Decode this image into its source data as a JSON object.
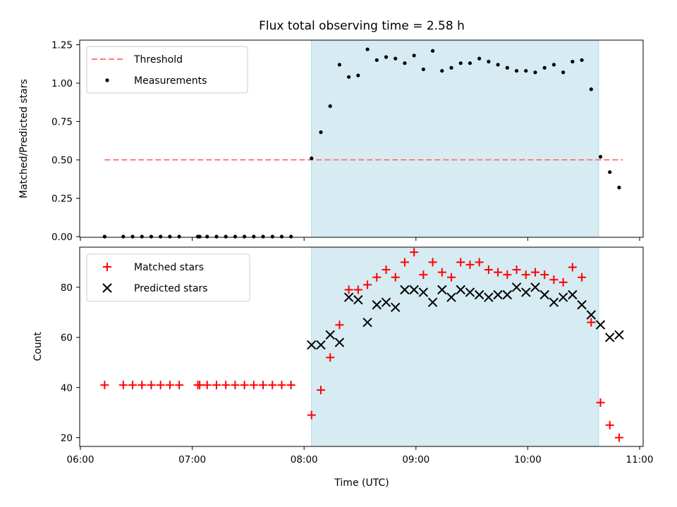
{
  "title": "Flux total observing time = 2.58 h",
  "xlabel": "Time (UTC)",
  "colors": {
    "highlight": "#add8e6",
    "threshold": "#ff7f7f",
    "measurements": "#000000",
    "matched": "#ff0000",
    "predicted": "#000000"
  },
  "chart_data": [
    {
      "type": "line+scatter",
      "ylabel": "Matched/Predicted stars",
      "xlim": [
        "06:00",
        "11:00"
      ],
      "ylim": [
        0,
        1.28
      ],
      "x_ticks": [
        "06:00",
        "07:00",
        "08:00",
        "09:00",
        "10:00",
        "11:00"
      ],
      "y_ticks": [
        "0.00",
        "0.25",
        "0.50",
        "0.75",
        "1.00",
        "1.25"
      ],
      "legend_position": "top-left",
      "highlight_span": [
        "08:04",
        "10:38"
      ],
      "threshold": {
        "name": "Threshold",
        "value": 0.5,
        "x_range": [
          "06:13",
          "10:51"
        ]
      },
      "series": [
        {
          "name": "Measurements",
          "marker": "dot",
          "points": [
            [
              "06:13",
              0
            ],
            [
              "06:23",
              0
            ],
            [
              "06:28",
              0
            ],
            [
              "06:33",
              0
            ],
            [
              "06:38",
              0
            ],
            [
              "06:43",
              0
            ],
            [
              "06:48",
              0
            ],
            [
              "06:53",
              0
            ],
            [
              "07:03",
              0
            ],
            [
              "07:04",
              0
            ],
            [
              "07:08",
              0
            ],
            [
              "07:13",
              0
            ],
            [
              "07:18",
              0
            ],
            [
              "07:23",
              0
            ],
            [
              "07:28",
              0
            ],
            [
              "07:33",
              0
            ],
            [
              "07:38",
              0
            ],
            [
              "07:43",
              0
            ],
            [
              "07:48",
              0
            ],
            [
              "07:53",
              0
            ],
            [
              "08:04",
              0.51
            ],
            [
              "08:09",
              0.68
            ],
            [
              "08:14",
              0.85
            ],
            [
              "08:19",
              1.12
            ],
            [
              "08:24",
              1.04
            ],
            [
              "08:29",
              1.05
            ],
            [
              "08:34",
              1.22
            ],
            [
              "08:39",
              1.15
            ],
            [
              "08:44",
              1.17
            ],
            [
              "08:49",
              1.16
            ],
            [
              "08:54",
              1.13
            ],
            [
              "08:59",
              1.18
            ],
            [
              "09:04",
              1.09
            ],
            [
              "09:09",
              1.21
            ],
            [
              "09:14",
              1.08
            ],
            [
              "09:19",
              1.1
            ],
            [
              "09:24",
              1.13
            ],
            [
              "09:29",
              1.13
            ],
            [
              "09:34",
              1.16
            ],
            [
              "09:39",
              1.14
            ],
            [
              "09:44",
              1.12
            ],
            [
              "09:49",
              1.1
            ],
            [
              "09:54",
              1.08
            ],
            [
              "09:59",
              1.08
            ],
            [
              "10:04",
              1.07
            ],
            [
              "10:09",
              1.1
            ],
            [
              "10:14",
              1.12
            ],
            [
              "10:19",
              1.07
            ],
            [
              "10:24",
              1.14
            ],
            [
              "10:29",
              1.15
            ],
            [
              "10:34",
              0.96
            ],
            [
              "10:39",
              0.52
            ],
            [
              "10:44",
              0.42
            ],
            [
              "10:49",
              0.32
            ]
          ]
        }
      ]
    },
    {
      "type": "scatter",
      "ylabel": "Count",
      "xlim": [
        "06:00",
        "11:00"
      ],
      "ylim": [
        16.5,
        96
      ],
      "x_ticks": [
        "06:00",
        "07:00",
        "08:00",
        "09:00",
        "10:00",
        "11:00"
      ],
      "y_ticks": [
        "20",
        "40",
        "60",
        "80"
      ],
      "legend_position": "top-left",
      "highlight_span": [
        "08:04",
        "10:38"
      ],
      "series": [
        {
          "name": "Matched stars",
          "marker": "plus",
          "points": [
            [
              "06:13",
              41
            ],
            [
              "06:23",
              41
            ],
            [
              "06:28",
              41
            ],
            [
              "06:33",
              41
            ],
            [
              "06:38",
              41
            ],
            [
              "06:43",
              41
            ],
            [
              "06:48",
              41
            ],
            [
              "06:53",
              41
            ],
            [
              "07:03",
              41
            ],
            [
              "07:04",
              41
            ],
            [
              "07:08",
              41
            ],
            [
              "07:13",
              41
            ],
            [
              "07:18",
              41
            ],
            [
              "07:23",
              41
            ],
            [
              "07:28",
              41
            ],
            [
              "07:33",
              41
            ],
            [
              "07:38",
              41
            ],
            [
              "07:43",
              41
            ],
            [
              "07:48",
              41
            ],
            [
              "07:53",
              41
            ],
            [
              "08:04",
              29
            ],
            [
              "08:09",
              39
            ],
            [
              "08:14",
              52
            ],
            [
              "08:19",
              65
            ],
            [
              "08:24",
              79
            ],
            [
              "08:29",
              79
            ],
            [
              "08:34",
              81
            ],
            [
              "08:39",
              84
            ],
            [
              "08:44",
              87
            ],
            [
              "08:49",
              84
            ],
            [
              "08:54",
              90
            ],
            [
              "08:59",
              94
            ],
            [
              "09:04",
              85
            ],
            [
              "09:09",
              90
            ],
            [
              "09:14",
              86
            ],
            [
              "09:19",
              84
            ],
            [
              "09:24",
              90
            ],
            [
              "09:29",
              89
            ],
            [
              "09:34",
              90
            ],
            [
              "09:39",
              87
            ],
            [
              "09:44",
              86
            ],
            [
              "09:49",
              85
            ],
            [
              "09:54",
              87
            ],
            [
              "09:59",
              85
            ],
            [
              "10:04",
              86
            ],
            [
              "10:09",
              85
            ],
            [
              "10:14",
              83
            ],
            [
              "10:19",
              82
            ],
            [
              "10:24",
              88
            ],
            [
              "10:29",
              84
            ],
            [
              "10:34",
              66
            ],
            [
              "10:39",
              34
            ],
            [
              "10:44",
              25
            ],
            [
              "10:49",
              20
            ]
          ]
        },
        {
          "name": "Predicted stars",
          "marker": "x",
          "points": [
            [
              "08:04",
              57
            ],
            [
              "08:09",
              57
            ],
            [
              "08:14",
              61
            ],
            [
              "08:19",
              58
            ],
            [
              "08:24",
              76
            ],
            [
              "08:29",
              75
            ],
            [
              "08:34",
              66
            ],
            [
              "08:39",
              73
            ],
            [
              "08:44",
              74
            ],
            [
              "08:49",
              72
            ],
            [
              "08:54",
              79
            ],
            [
              "08:59",
              79
            ],
            [
              "09:04",
              78
            ],
            [
              "09:09",
              74
            ],
            [
              "09:14",
              79
            ],
            [
              "09:19",
              76
            ],
            [
              "09:24",
              79
            ],
            [
              "09:29",
              78
            ],
            [
              "09:34",
              77
            ],
            [
              "09:39",
              76
            ],
            [
              "09:44",
              77
            ],
            [
              "09:49",
              77
            ],
            [
              "09:54",
              80
            ],
            [
              "09:59",
              78
            ],
            [
              "10:04",
              80
            ],
            [
              "10:09",
              77
            ],
            [
              "10:14",
              74
            ],
            [
              "10:19",
              76
            ],
            [
              "10:24",
              77
            ],
            [
              "10:29",
              73
            ],
            [
              "10:34",
              69
            ],
            [
              "10:39",
              65
            ],
            [
              "10:44",
              60
            ],
            [
              "10:49",
              61
            ]
          ]
        }
      ]
    }
  ]
}
